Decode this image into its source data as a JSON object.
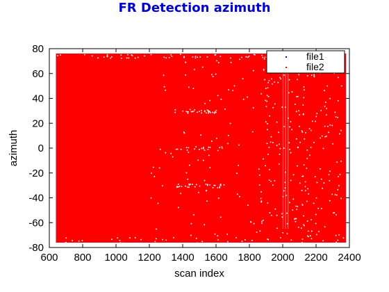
{
  "chart_data": {
    "type": "scatter",
    "title": "FR Detection azimuth",
    "xlabel": "scan index",
    "ylabel": "azimuth",
    "xlim": [
      600,
      2400
    ],
    "ylim": [
      -80,
      80
    ],
    "xticks": [
      600,
      800,
      1000,
      1200,
      1400,
      1600,
      1800,
      2000,
      2200,
      2400
    ],
    "yticks": [
      -80,
      -60,
      -40,
      -20,
      0,
      20,
      40,
      60,
      80
    ],
    "grid": false,
    "legend_position": "top-right",
    "series": [
      {
        "name": "file1",
        "color": "#0000cc",
        "marker": "point",
        "x_range": [
          640,
          2380
        ],
        "y_range": [
          -76,
          76
        ],
        "density": "dense"
      },
      {
        "name": "file2",
        "color": "#ff0000",
        "marker": "point",
        "x_range": [
          640,
          2380
        ],
        "y_range": [
          -76,
          76
        ],
        "density": "dense"
      }
    ]
  },
  "colors": {
    "title": "#0000cc",
    "file1": "#0000cc",
    "file2": "#ff0000",
    "background": "#ffffff"
  }
}
